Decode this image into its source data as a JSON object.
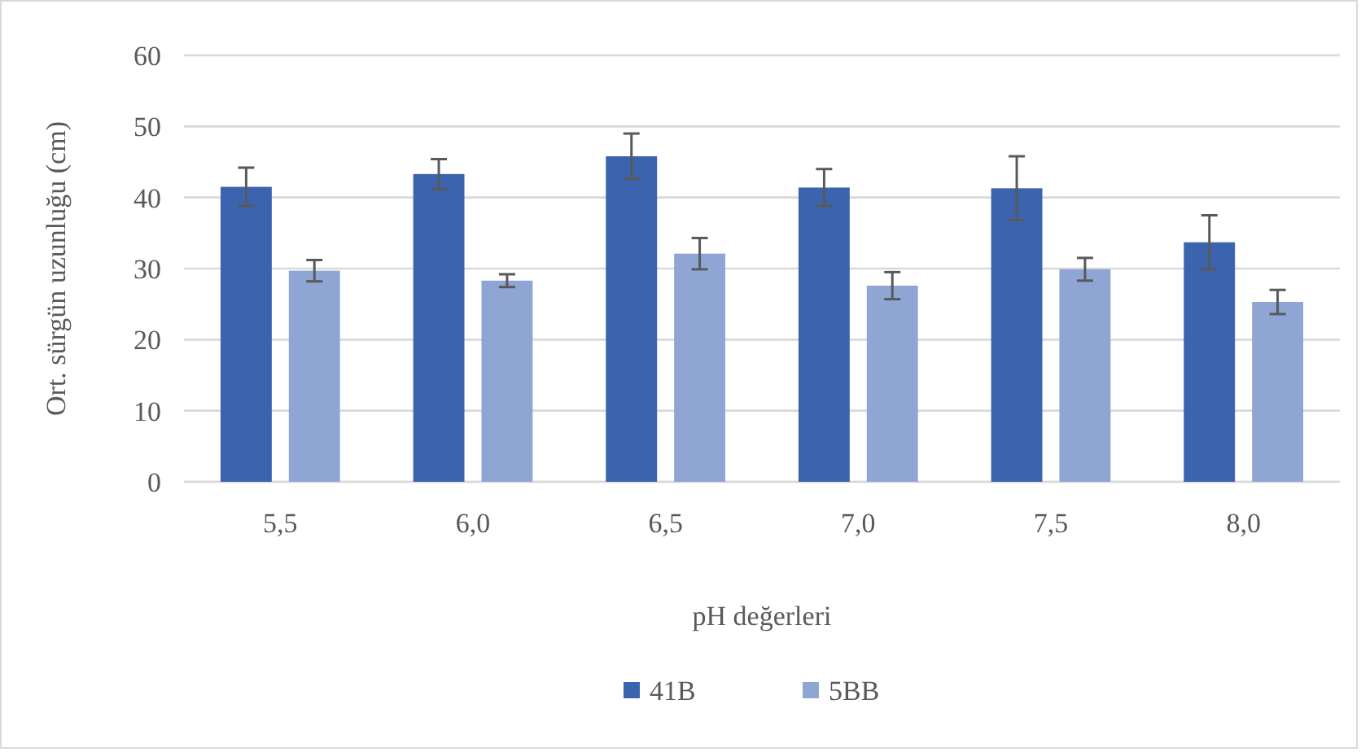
{
  "chart_data": {
    "type": "bar",
    "xlabel": "pH değerleri",
    "ylabel": "Ort. sürgün uzunluğu (cm)",
    "categories": [
      "5,5",
      "6,0",
      "6,5",
      "7,0",
      "7,5",
      "8,0"
    ],
    "series": [
      {
        "name": "41B",
        "color": "#3c64ae",
        "values": [
          41.5,
          43.3,
          45.8,
          41.4,
          41.3,
          33.7
        ],
        "errors": [
          2.7,
          2.1,
          3.2,
          2.6,
          4.5,
          3.8
        ]
      },
      {
        "name": "5BB",
        "color": "#8fa5d4",
        "values": [
          29.7,
          28.3,
          32.1,
          27.6,
          29.9,
          25.3
        ],
        "errors": [
          1.5,
          0.9,
          2.2,
          1.9,
          1.6,
          1.7
        ]
      }
    ],
    "ylim": [
      0,
      60
    ],
    "yticks": [
      0,
      10,
      20,
      30,
      40,
      50,
      60
    ],
    "grid": "y",
    "legend": "bottom"
  }
}
